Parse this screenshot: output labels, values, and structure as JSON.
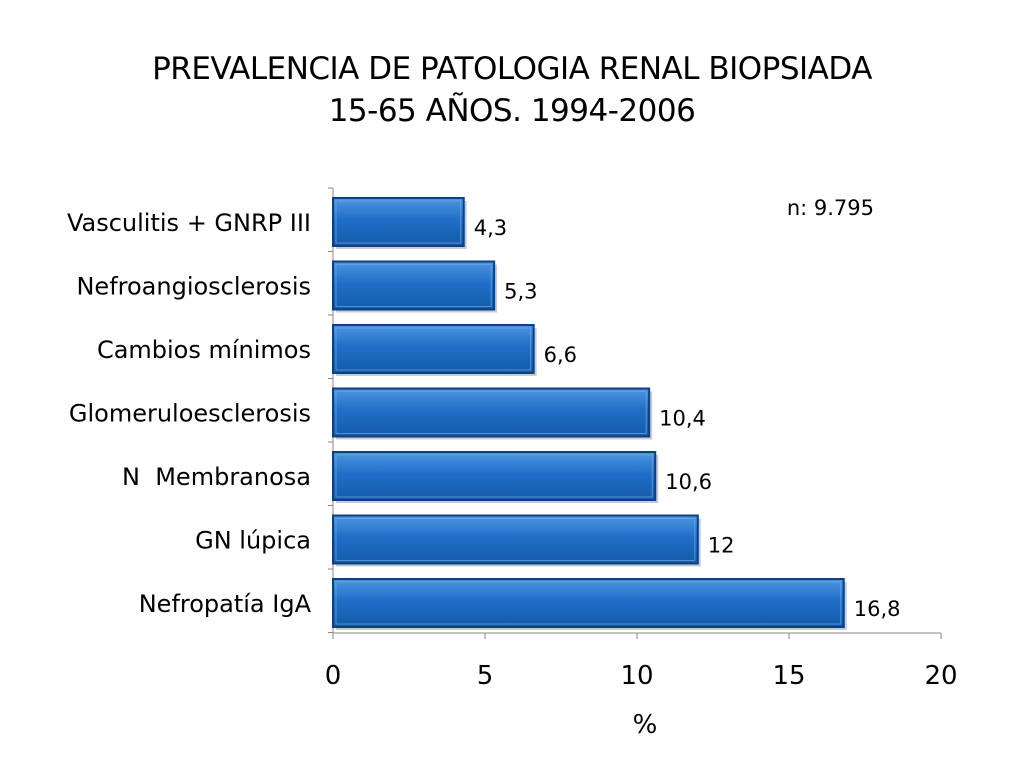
{
  "slide": {
    "title_line1": "PREVALENCIA DE PATOLOGIA RENAL BIOPSIADA",
    "title_line2": "15-65 AÑOS. 1994-2006"
  },
  "chart_data": {
    "type": "bar",
    "orientation": "horizontal",
    "categories": [
      "Vasculitis + GNRP III",
      "Nefroangiosclerosis",
      "Cambios mínimos",
      "Glomeruloesclerosis",
      "N  Membranosa",
      "GN lúpica",
      "Nefropatía IgA"
    ],
    "values": [
      4.3,
      5.3,
      6.6,
      10.4,
      10.6,
      12,
      16.8
    ],
    "value_labels": [
      "4,3",
      "5,3",
      "6,6",
      "10,4",
      "10,6",
      "12",
      "16,8"
    ],
    "xlim": [
      0,
      20
    ],
    "xticks": [
      0,
      5,
      10,
      15,
      20
    ],
    "xlabel": "%",
    "annotation": "n: 9.795",
    "grid": false,
    "bar_color": "#1f6fc8",
    "bar_edge_color": "#0f3f80"
  }
}
